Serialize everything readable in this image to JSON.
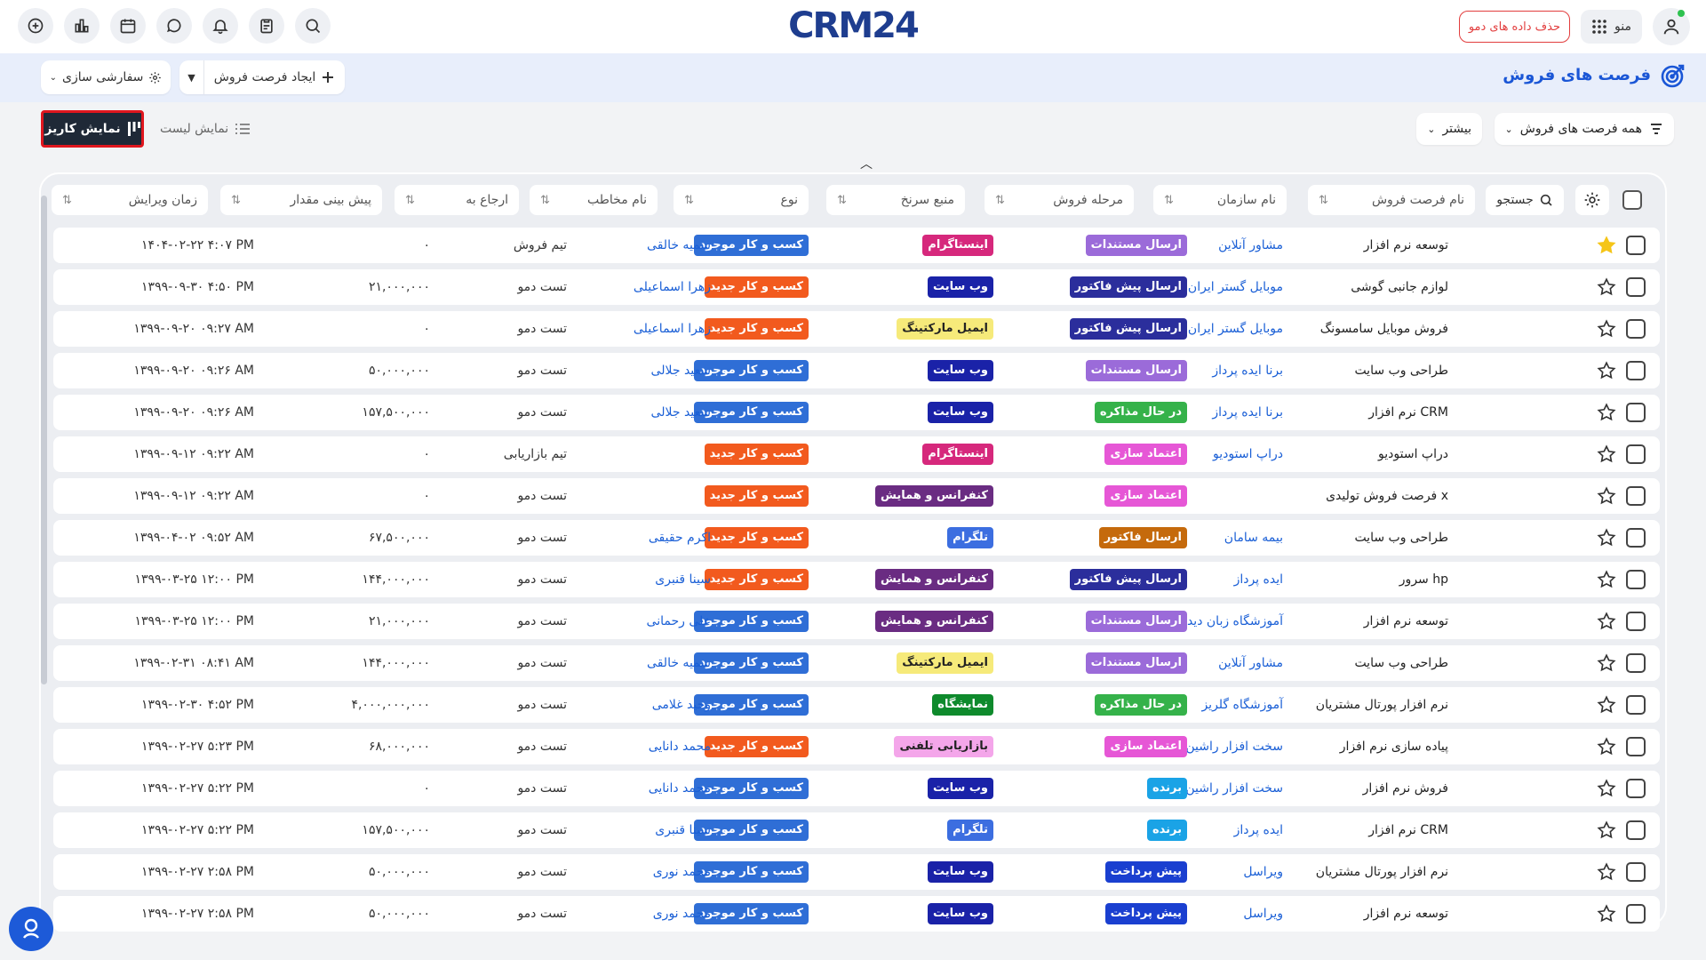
{
  "topbar": {
    "demo_delete_label": "حذف داده های دمو",
    "menu_label": "منو",
    "logo_text_left": "CRM",
    "logo_text_right": "24"
  },
  "header": {
    "title": "فرصت های فروش",
    "create_label": "ایجاد فرصت فروش",
    "customize_label": "سفارشی سازی"
  },
  "filters": {
    "all_label": "همه فرصت های فروش",
    "more_label": "بیشتر",
    "kanban_label": "نمایش کاریز",
    "list_label": "نمایش لیست"
  },
  "table": {
    "search_label": "جستجو",
    "columns": {
      "name": "نام فرصت فروش",
      "org": "نام سازمان",
      "stage": "مرحله فروش",
      "source": "منبع سرنخ",
      "type": "نوع",
      "contact": "نام مخاطب",
      "ref": "ارجاع به",
      "amount": "پیش بینی مقدار",
      "time": "زمان ویرایش"
    },
    "rows": [
      {
        "name": "توسعه نرم افزار",
        "org": "مشاور آنلاین",
        "stage": "ارسال مستندات",
        "source": "اینستاگرام",
        "type": "کسب و کار موجود",
        "contact": "سمیه خالقی",
        "ref": "تیم فروش",
        "amount": "۰",
        "time": "۱۴۰۴-۰۲-۲۲ ۴:۰۷ PM",
        "starred": true
      },
      {
        "name": "لوازم جانبی گوشی",
        "org": "موبایل گستر ایران",
        "stage": "ارسال پیش فاکتور",
        "source": "وب سایت",
        "type": "کسب و کار جدید",
        "contact": "زهرا اسماعیلی",
        "ref": "تست دمو",
        "amount": "۲۱,۰۰۰,۰۰۰",
        "time": "۱۳۹۹-۰۹-۳۰ ۴:۵۰ PM",
        "starred": false
      },
      {
        "name": "فروش موبایل سامسونگ",
        "org": "موبایل گستر ایران",
        "stage": "ارسال پیش فاکتور",
        "source": "ایمیل مارکتینگ",
        "type": "کسب و کار جدید",
        "contact": "زهرا اسماعیلی",
        "ref": "تست دمو",
        "amount": "۰",
        "time": "۱۳۹۹-۰۹-۲۰ ۰۹:۲۷ AM",
        "starred": false
      },
      {
        "name": "طراحی وب سایت",
        "org": "برنا ایده پرداز",
        "stage": "ارسال مستندات",
        "source": "وب سایت",
        "type": "کسب و کار موجود",
        "contact": "سعید جلالی",
        "ref": "تست دمو",
        "amount": "۵۰,۰۰۰,۰۰۰",
        "time": "۱۳۹۹-۰۹-۲۰ ۰۹:۲۶ AM",
        "starred": false
      },
      {
        "name": "نرم افزار CRM",
        "org": "برنا ایده پرداز",
        "stage": "در حال مذاکره",
        "source": "وب سایت",
        "type": "کسب و کار موجود",
        "contact": "سعید جلالی",
        "ref": "تست دمو",
        "amount": "۱۵۷,۵۰۰,۰۰۰",
        "time": "۱۳۹۹-۰۹-۲۰ ۰۹:۲۶ AM",
        "starred": false
      },
      {
        "name": "دراپ استودیو",
        "org": "دراپ استودیو",
        "stage": "اعتماد سازی",
        "source": "اینستاگرام",
        "type": "کسب و کار جدید",
        "contact": "",
        "ref": "تیم بازاریابی",
        "amount": "۰",
        "time": "۱۳۹۹-۰۹-۱۲ ۰۹:۲۲ AM",
        "starred": false
      },
      {
        "name": "فرصت فروش تولیدی x",
        "org": "",
        "stage": "اعتماد سازی",
        "source": "کنفرانس و همایش",
        "type": "کسب و کار جدید",
        "contact": "",
        "ref": "تست دمو",
        "amount": "۰",
        "time": "۱۳۹۹-۰۹-۱۲ ۰۹:۲۲ AM",
        "starred": false
      },
      {
        "name": "طراحی وب سایت",
        "org": "بیمه سامان",
        "stage": "ارسال فاکتور",
        "source": "تلگرام",
        "type": "کسب و کار جدید",
        "contact": "اکرم حقیقی",
        "ref": "تست دمو",
        "amount": "۶۷,۵۰۰,۰۰۰",
        "time": "۱۳۹۹-۰۴-۰۲ ۰۹:۵۲ AM",
        "starred": false
      },
      {
        "name": "سرور hp",
        "org": "ایده پرداز",
        "stage": "ارسال پیش فاکتور",
        "source": "کنفرانس و همایش",
        "type": "کسب و کار جدید",
        "contact": "سینا قنبری",
        "ref": "تست دمو",
        "amount": "۱۴۴,۰۰۰,۰۰۰",
        "time": "۱۳۹۹-۰۳-۲۵ ۱۲:۰۰ PM",
        "starred": false
      },
      {
        "name": "توسعه نرم افزار",
        "org": "آموزشگاه زبان دیدار",
        "stage": "ارسال مستندات",
        "source": "کنفرانس و همایش",
        "type": "کسب و کار موجود",
        "contact": "علی رحمانی",
        "ref": "تست دمو",
        "amount": "۲۱,۰۰۰,۰۰۰",
        "time": "۱۳۹۹-۰۳-۲۵ ۱۲:۰۰ PM",
        "starred": false
      },
      {
        "name": "طراحی وب سایت",
        "org": "مشاور آنلاین",
        "stage": "ارسال مستندات",
        "source": "ایمیل مارکتینگ",
        "type": "کسب و کار موجود",
        "contact": "سمیه خالقی",
        "ref": "تست دمو",
        "amount": "۱۴۴,۰۰۰,۰۰۰",
        "time": "۱۳۹۹-۰۲-۳۱ ۰۸:۴۱ AM",
        "starred": false
      },
      {
        "name": "نرم افزار پورتال مشتریان",
        "org": "آموزشگاه گلریز",
        "stage": "در حال مذاکره",
        "source": "نمایشگاه",
        "type": "کسب و کار موجود",
        "contact": "وحید غلامی",
        "ref": "تست دمو",
        "amount": "۴,۰۰۰,۰۰۰,۰۰۰",
        "time": "۱۳۹۹-۰۲-۳۰ ۴:۵۲ PM",
        "starred": false
      },
      {
        "name": "پیاده سازی نرم افزار",
        "org": "سخت افزار راشین",
        "stage": "اعتماد سازی",
        "source": "بازاریابی تلفنی",
        "type": "کسب و کار جدید",
        "contact": "محمد دانایی",
        "ref": "تست دمو",
        "amount": "۶۸,۰۰۰,۰۰۰",
        "time": "۱۳۹۹-۰۲-۲۷ ۵:۲۳ PM",
        "starred": false
      },
      {
        "name": "فروش نرم افزار",
        "org": "سخت افزار راشین",
        "stage": "برنده",
        "source": "وب سایت",
        "type": "کسب و کار موجود",
        "contact": "محمد دانایی",
        "ref": "تست دمو",
        "amount": "۰",
        "time": "۱۳۹۹-۰۲-۲۷ ۵:۲۲ PM",
        "starred": false
      },
      {
        "name": "نرم افزار CRM",
        "org": "ایده پرداز",
        "stage": "برنده",
        "source": "تلگرام",
        "type": "کسب و کار موجود",
        "contact": "سینا قنبری",
        "ref": "تست دمو",
        "amount": "۱۵۷,۵۰۰,۰۰۰",
        "time": "۱۳۹۹-۰۲-۲۷ ۵:۲۲ PM",
        "starred": false
      },
      {
        "name": "نرم افزار پورتال مشتریان",
        "org": "ویراسل",
        "stage": "پیش پرداخت",
        "source": "وب سایت",
        "type": "کسب و کار موجود",
        "contact": "محمد نوری",
        "ref": "تست دمو",
        "amount": "۵۰,۰۰۰,۰۰۰",
        "time": "۱۳۹۹-۰۲-۲۷ ۲:۵۸ PM",
        "starred": false
      },
      {
        "name": "توسعه نرم افزار",
        "org": "ویراسل",
        "stage": "پیش پرداخت",
        "source": "وب سایت",
        "type": "کسب و کار موجود",
        "contact": "محمد نوری",
        "ref": "تست دمو",
        "amount": "۵۰,۰۰۰,۰۰۰",
        "time": "۱۳۹۹-۰۲-۲۷ ۲:۵۸ PM",
        "starred": false
      }
    ]
  },
  "tag_colors": {
    "ارسال مستندات": {
      "bg": "#9b6bd9",
      "fg": "#ffffff"
    },
    "ارسال پیش فاکتور": {
      "bg": "#2b2e9c",
      "fg": "#ffffff"
    },
    "در حال مذاکره": {
      "bg": "#35b24a",
      "fg": "#ffffff"
    },
    "اعتماد سازی": {
      "bg": "#e657d6",
      "fg": "#ffffff"
    },
    "ارسال فاکتور": {
      "bg": "#c56a0c",
      "fg": "#ffffff"
    },
    "برنده": {
      "bg": "#1aa3e6",
      "fg": "#ffffff"
    },
    "پیش پرداخت": {
      "bg": "#1a3fd0",
      "fg": "#ffffff"
    },
    "اینستاگرام": {
      "bg": "#d6287c",
      "fg": "#ffffff"
    },
    "وب سایت": {
      "bg": "#1a22a8",
      "fg": "#ffffff"
    },
    "ایمیل مارکتینگ": {
      "bg": "#f6ea7a",
      "fg": "#222222"
    },
    "کنفرانس و همایش": {
      "bg": "#6a2c82",
      "fg": "#ffffff"
    },
    "تلگرام": {
      "bg": "#3c6ee0",
      "fg": "#ffffff"
    },
    "نمایشگاه": {
      "bg": "#0e8a2c",
      "fg": "#ffffff"
    },
    "بازاریابی تلفنی": {
      "bg": "#f4a6ea",
      "fg": "#222222"
    },
    "کسب و کار موجود": {
      "bg": "#2f6ed6",
      "fg": "#ffffff"
    },
    "کسب و کار جدید": {
      "bg": "#f25a1e",
      "fg": "#ffffff"
    }
  },
  "icons": {
    "user": "user-icon",
    "grid": "grid-icon",
    "add": "add-circle-icon",
    "chart": "bar-chart-icon",
    "calendar": "calendar-icon",
    "chat": "chat-icon",
    "bell": "bell-icon",
    "clipboard": "clipboard-icon",
    "search": "search-icon",
    "filter": "filter-icon",
    "gear": "gear-icon",
    "star": "star-icon"
  },
  "colors": {
    "accent": "#1a56d6",
    "band": "#e8eefb",
    "star_active": "#f5c518",
    "link": "#1a5fd6"
  }
}
